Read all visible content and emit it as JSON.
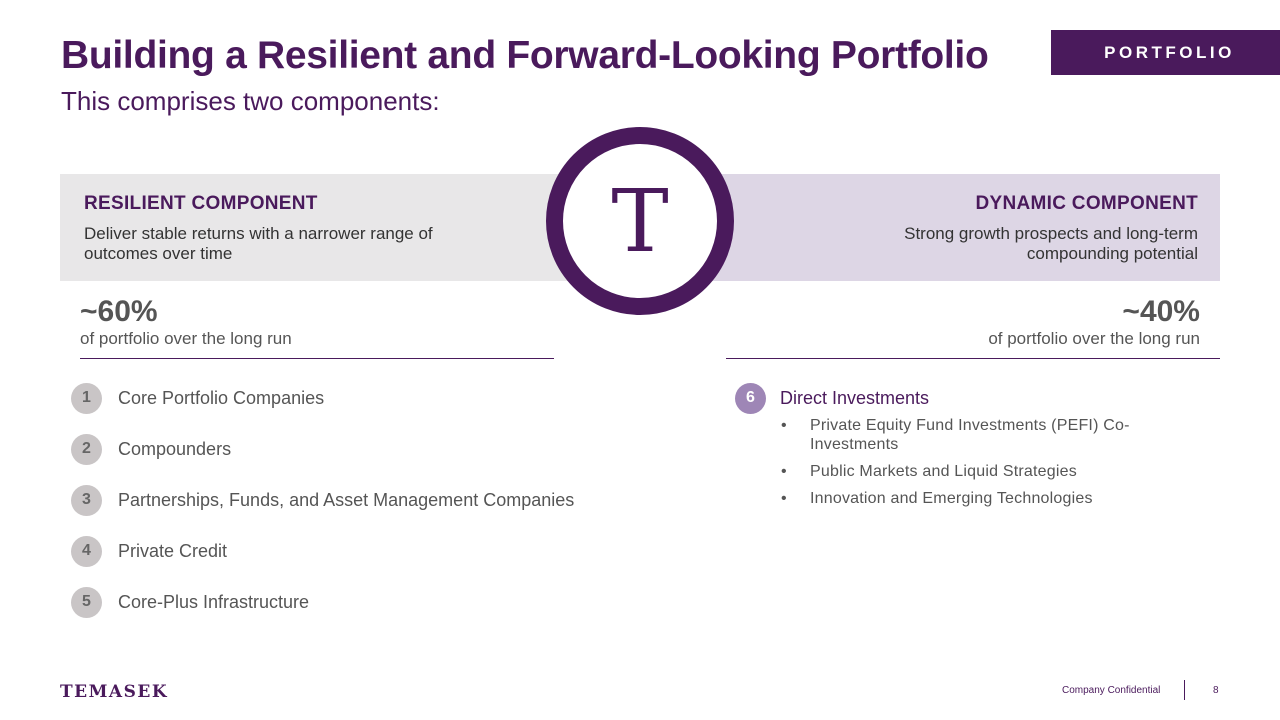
{
  "header": {
    "title": "Building a Resilient and Forward-Looking Portfolio",
    "subtitle": "This comprises two components:",
    "section_tag": "PORTFOLIO"
  },
  "logo": {
    "letter": "T"
  },
  "resilient": {
    "title": "RESILIENT COMPONENT",
    "description": "Deliver stable returns with a narrower range of outcomes over time",
    "share": "~60%",
    "share_caption": "of portfolio over the long run",
    "items": [
      {
        "number": "1",
        "label": "Core Portfolio Companies"
      },
      {
        "number": "2",
        "label": "Compounders"
      },
      {
        "number": "3",
        "label": "Partnerships, Funds, and Asset Management Companies"
      },
      {
        "number": "4",
        "label": "Private Credit"
      },
      {
        "number": "5",
        "label": "Core-Plus Infrastructure"
      }
    ]
  },
  "dynamic": {
    "title": "DYNAMIC COMPONENT",
    "description": "Strong growth prospects and long-term compounding potential",
    "share": "~40%",
    "share_caption": "of portfolio over the long run",
    "item": {
      "number": "6",
      "label": "Direct Investments"
    },
    "bullets": [
      "Private Equity Fund Investments (PEFI) Co-Investments",
      "Public Markets and Liquid Strategies",
      "Innovation and Emerging Technologies"
    ]
  },
  "footer": {
    "brand": "TEMASEK",
    "confidentiality": "Company Confidential",
    "page_number": "8"
  },
  "colors": {
    "brand_purple": "#4a1a5c",
    "resilient_band": "#e8e7e8",
    "dynamic_band": "#ddd6e5",
    "badge_grey": "#c9c5c6",
    "badge_purple": "#9e86b6"
  }
}
